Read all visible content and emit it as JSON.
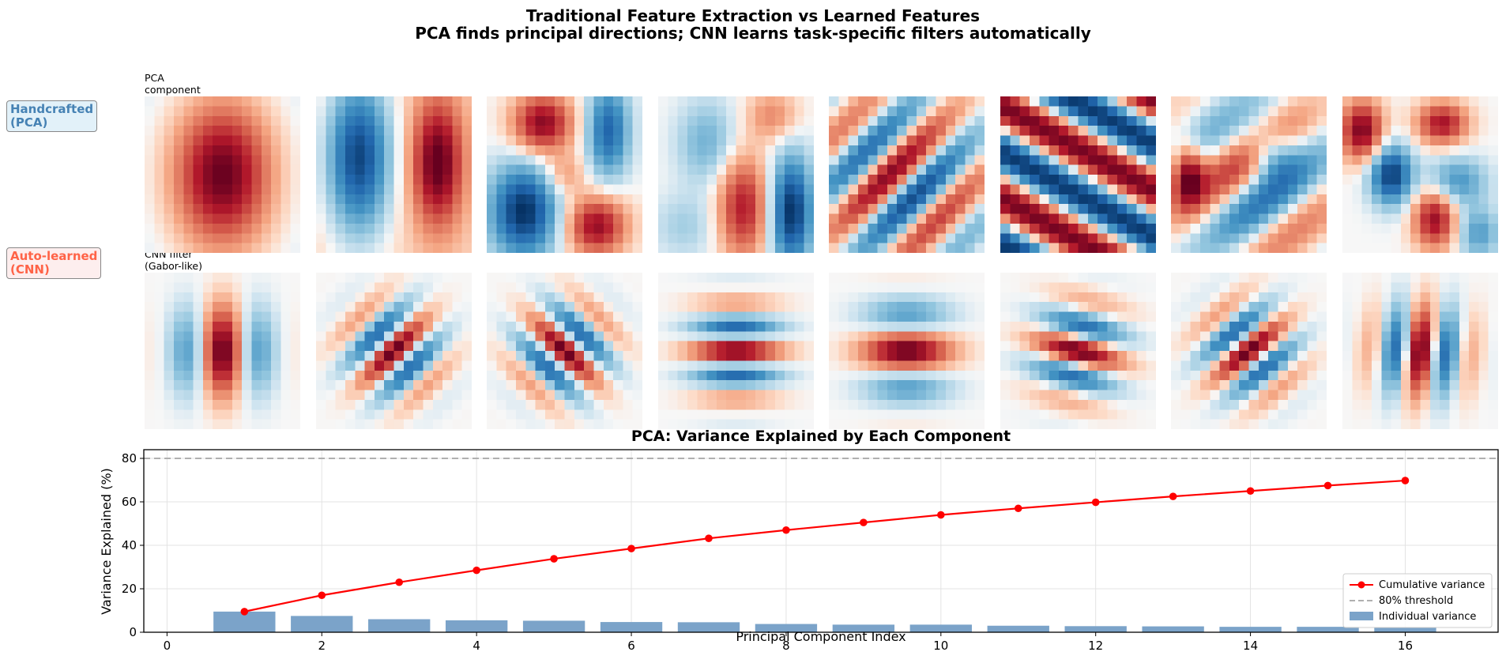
{
  "figure": {
    "title_line1": "Traditional Feature Extraction vs Learned Features",
    "title_line2": "PCA finds principal directions; CNN learns task-specific filters automatically"
  },
  "rows": {
    "pca": {
      "label_line1": "Handcrafted",
      "label_line2": "(PCA)",
      "caption_line1": "PCA",
      "caption_line2": "component",
      "color": "#4682b4",
      "bg": "#e2f1f9"
    },
    "cnn": {
      "label_line1": "Auto-learned",
      "label_line2": "(CNN)",
      "caption_line1": "CNN filter",
      "caption_line2": "(Gabor-like)",
      "color": "#ff6347",
      "bg": "#fdeeee"
    }
  },
  "colormap": "RdBu_r",
  "chart_data": {
    "type": "bar",
    "title": "PCA: Variance Explained by Each Component",
    "xlabel": "Principal Component Index",
    "ylabel": "Variance Explained (%)",
    "xlim": [
      -0.3,
      17.2
    ],
    "ylim": [
      0,
      84
    ],
    "xticks": [
      0,
      2,
      4,
      6,
      8,
      10,
      12,
      14,
      16
    ],
    "yticks": [
      0,
      20,
      40,
      60,
      80
    ],
    "grid": true,
    "legend_position": "lower-right",
    "x": [
      1,
      2,
      3,
      4,
      5,
      6,
      7,
      8,
      9,
      10,
      11,
      12,
      13,
      14,
      15,
      16
    ],
    "series": [
      {
        "name": "Cumulative variance",
        "kind": "line",
        "color": "#ff0000",
        "values": [
          9.5,
          17.0,
          23.0,
          28.5,
          33.8,
          38.5,
          43.2,
          47.0,
          50.5,
          54.0,
          57.0,
          59.8,
          62.5,
          65.0,
          67.5,
          69.8
        ]
      },
      {
        "name": "Individual variance",
        "kind": "bar",
        "color": "#7ba3c9",
        "values": [
          9.5,
          7.5,
          6.0,
          5.5,
          5.3,
          4.7,
          4.6,
          3.8,
          3.5,
          3.5,
          3.0,
          2.8,
          2.7,
          2.5,
          2.5,
          2.3
        ]
      }
    ],
    "reference_lines": [
      {
        "name": "80% threshold",
        "value": 80,
        "color": "#b0b0b0",
        "style": "dashed"
      }
    ]
  }
}
